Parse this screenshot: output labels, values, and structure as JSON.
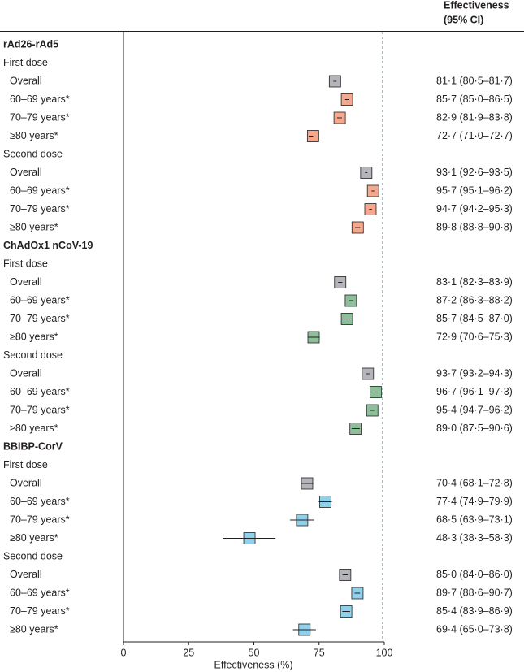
{
  "chart_data": {
    "type": "forest",
    "value_header": [
      "Effectiveness",
      "(95% CI)"
    ],
    "xlabel": "Effectiveness (%)",
    "xlim": [
      0,
      100
    ],
    "xticks": [
      0,
      25,
      50,
      75,
      100
    ],
    "reference_line": 100,
    "overall_color": "#b3b5ba",
    "groups": [
      {
        "name": "rAd26-rAd5",
        "color": "#f4a98f",
        "doses": [
          {
            "name": "First dose",
            "rows": [
              {
                "label": "Overall",
                "value": 81.1,
                "ci": [
                  80.5,
                  81.7
                ],
                "value_label": "81·1 (80·5–81·7)"
              },
              {
                "label": "60–69 years*",
                "value": 85.7,
                "ci": [
                  85.0,
                  86.5
                ],
                "value_label": "85·7 (85·0–86·5)"
              },
              {
                "label": "70–79 years*",
                "value": 82.9,
                "ci": [
                  81.9,
                  83.8
                ],
                "value_label": "82·9 (81·9–83·8)"
              },
              {
                "label": "≥80 years*",
                "value": 72.7,
                "ci": [
                  71.0,
                  72.7
                ],
                "value_label": "72·7 (71·0–72·7)"
              }
            ]
          },
          {
            "name": "Second dose",
            "rows": [
              {
                "label": "Overall",
                "value": 93.1,
                "ci": [
                  92.6,
                  93.5
                ],
                "value_label": "93·1 (92·6–93·5)"
              },
              {
                "label": "60–69 years*",
                "value": 95.7,
                "ci": [
                  95.1,
                  96.2
                ],
                "value_label": "95·7 (95·1–96·2)"
              },
              {
                "label": "70–79 years*",
                "value": 94.7,
                "ci": [
                  94.2,
                  95.3
                ],
                "value_label": "94·7 (94·2–95·3)"
              },
              {
                "label": "≥80 years*",
                "value": 89.8,
                "ci": [
                  88.8,
                  90.8
                ],
                "value_label": "89·8 (88·8–90·8)"
              }
            ]
          }
        ]
      },
      {
        "name": "ChAdOx1 nCoV-19",
        "color": "#8dbf9b",
        "doses": [
          {
            "name": "First dose",
            "rows": [
              {
                "label": "Overall",
                "value": 83.1,
                "ci": [
                  82.3,
                  83.9
                ],
                "value_label": "83·1 (82·3–83·9)"
              },
              {
                "label": "60–69 years*",
                "value": 87.2,
                "ci": [
                  86.3,
                  88.2
                ],
                "value_label": "87·2 (86·3–88·2)"
              },
              {
                "label": "70–79 years*",
                "value": 85.7,
                "ci": [
                  84.5,
                  87.0
                ],
                "value_label": "85·7 (84·5–87·0)"
              },
              {
                "label": "≥80 years*",
                "value": 72.9,
                "ci": [
                  70.6,
                  75.3
                ],
                "value_label": "72·9 (70·6–75·3)"
              }
            ]
          },
          {
            "name": "Second dose",
            "rows": [
              {
                "label": "Overall",
                "value": 93.7,
                "ci": [
                  93.2,
                  94.3
                ],
                "value_label": "93·7 (93·2–94·3)"
              },
              {
                "label": "60–69 years*",
                "value": 96.7,
                "ci": [
                  96.1,
                  97.3
                ],
                "value_label": "96·7 (96·1–97·3)"
              },
              {
                "label": "70–79 years*",
                "value": 95.4,
                "ci": [
                  94.7,
                  96.2
                ],
                "value_label": "95·4 (94·7–96·2)"
              },
              {
                "label": "≥80 years*",
                "value": 89.0,
                "ci": [
                  87.5,
                  90.6
                ],
                "value_label": "89·0 (87·5–90·6)"
              }
            ]
          }
        ]
      },
      {
        "name": "BBIBP-CorV",
        "color": "#8fd1ea",
        "doses": [
          {
            "name": "First dose",
            "rows": [
              {
                "label": "Overall",
                "value": 70.4,
                "ci": [
                  68.1,
                  72.8
                ],
                "value_label": "70·4 (68·1–72·8)"
              },
              {
                "label": "60–69 years*",
                "value": 77.4,
                "ci": [
                  74.9,
                  79.9
                ],
                "value_label": "77·4 (74·9–79·9)"
              },
              {
                "label": "70–79 years*",
                "value": 68.5,
                "ci": [
                  63.9,
                  73.1
                ],
                "value_label": "68·5 (63·9–73·1)"
              },
              {
                "label": "≥80 years*",
                "value": 48.3,
                "ci": [
                  38.3,
                  58.3
                ],
                "value_label": "48·3 (38·3–58·3)"
              }
            ]
          },
          {
            "name": "Second dose",
            "rows": [
              {
                "label": "Overall",
                "value": 85.0,
                "ci": [
                  84.0,
                  86.0
                ],
                "value_label": "85·0 (84·0–86·0)"
              },
              {
                "label": "60–69 years*",
                "value": 89.7,
                "ci": [
                  88.6,
                  90.7
                ],
                "value_label": "89·7 (88·6–90·7)"
              },
              {
                "label": "70–79 years*",
                "value": 85.4,
                "ci": [
                  83.9,
                  86.9
                ],
                "value_label": "85·4 (83·9–86·9)"
              },
              {
                "label": "≥80 years*",
                "value": 69.4,
                "ci": [
                  65.0,
                  73.8
                ],
                "value_label": "69·4 (65·0–73·8)"
              }
            ]
          }
        ]
      }
    ]
  }
}
